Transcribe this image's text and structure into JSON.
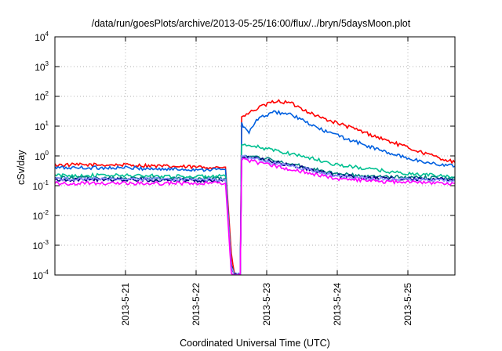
{
  "chart_data": {
    "type": "line",
    "title": "/data/run/goesPlots/archive/2013-05-25/16:00/flux/../bryn/5daysMoon.plot",
    "xlabel": "Coordinated Universal Time (UTC)",
    "ylabel": "cSv/day",
    "yscale": "log",
    "ylim": [
      0.0001,
      10000
    ],
    "xlim": [
      "2013-05-20 00:00",
      "2013-05-25 16:00"
    ],
    "grid": true,
    "legend": "none",
    "y_ticks": [
      {
        "base": "10",
        "exp": "-4"
      },
      {
        "base": "10",
        "exp": "-3"
      },
      {
        "base": "10",
        "exp": "-2"
      },
      {
        "base": "10",
        "exp": "-1"
      },
      {
        "base": "10",
        "exp": "0"
      },
      {
        "base": "10",
        "exp": "1"
      },
      {
        "base": "10",
        "exp": "2"
      },
      {
        "base": "10",
        "exp": "3"
      },
      {
        "base": "10",
        "exp": "4"
      }
    ],
    "x_ticks": [
      "2013-5-21",
      "2013-5-22",
      "2013-5-23",
      "2013-5-24",
      "2013-5-25"
    ],
    "series": [
      {
        "color": "#ff0000",
        "points": [
          [
            "2013-05-20 00:00",
            0.5
          ],
          [
            "2013-05-21 00:00",
            0.5
          ],
          [
            "2013-05-21 12:00",
            0.45
          ],
          [
            "2013-05-22 00:00",
            0.42
          ],
          [
            "2013-05-22 10:00",
            0.42
          ],
          [
            "2013-05-22 12:00",
            0.0005
          ],
          [
            "2013-05-22 13:00",
            0.0001
          ],
          [
            "2013-05-22 15:00",
            0.0001
          ],
          [
            "2013-05-22 15:30",
            20
          ],
          [
            "2013-05-22 21:00",
            40
          ],
          [
            "2013-05-23 03:00",
            70
          ],
          [
            "2013-05-23 08:00",
            60
          ],
          [
            "2013-05-23 18:00",
            20
          ],
          [
            "2013-05-24 06:00",
            8
          ],
          [
            "2013-05-24 18:00",
            3
          ],
          [
            "2013-05-25 06:00",
            1.2
          ],
          [
            "2013-05-25 16:00",
            0.6
          ]
        ]
      },
      {
        "color": "#0060e0",
        "points": [
          [
            "2013-05-20 00:00",
            0.4
          ],
          [
            "2013-05-21 00:00",
            0.4
          ],
          [
            "2013-05-21 12:00",
            0.36
          ],
          [
            "2013-05-22 00:00",
            0.35
          ],
          [
            "2013-05-22 10:00",
            0.35
          ],
          [
            "2013-05-22 12:00",
            0.0002
          ],
          [
            "2013-05-22 13:00",
            0.0001
          ],
          [
            "2013-05-22 15:00",
            0.0001
          ],
          [
            "2013-05-22 15:30",
            12
          ],
          [
            "2013-05-22 18:00",
            6
          ],
          [
            "2013-05-22 21:00",
            18
          ],
          [
            "2013-05-23 03:00",
            30
          ],
          [
            "2013-05-23 08:00",
            25
          ],
          [
            "2013-05-23 18:00",
            8
          ],
          [
            "2013-05-24 06:00",
            3
          ],
          [
            "2013-05-24 18:00",
            1.2
          ],
          [
            "2013-05-25 06:00",
            0.6
          ],
          [
            "2013-05-25 16:00",
            0.45
          ]
        ]
      },
      {
        "color": "#00c090",
        "points": [
          [
            "2013-05-20 00:00",
            0.22
          ],
          [
            "2013-05-21 00:00",
            0.22
          ],
          [
            "2013-05-22 00:00",
            0.2
          ],
          [
            "2013-05-22 10:00",
            0.21
          ],
          [
            "2013-05-22 12:00",
            0.0002
          ],
          [
            "2013-05-22 13:00",
            0.0001
          ],
          [
            "2013-05-22 15:00",
            0.0001
          ],
          [
            "2013-05-22 15:30",
            2.2
          ],
          [
            "2013-05-22 21:00",
            2.0
          ],
          [
            "2013-05-23 12:00",
            1.0
          ],
          [
            "2013-05-24 00:00",
            0.5
          ],
          [
            "2013-05-24 12:00",
            0.35
          ],
          [
            "2013-05-25 00:00",
            0.25
          ],
          [
            "2013-05-25 16:00",
            0.2
          ]
        ]
      },
      {
        "color": "#008080",
        "points": [
          [
            "2013-05-20 00:00",
            0.18
          ],
          [
            "2013-05-21 00:00",
            0.18
          ],
          [
            "2013-05-22 00:00",
            0.17
          ],
          [
            "2013-05-22 10:00",
            0.17
          ],
          [
            "2013-05-22 12:00",
            0.0002
          ],
          [
            "2013-05-22 13:00",
            0.0001
          ],
          [
            "2013-05-22 15:00",
            0.0001
          ],
          [
            "2013-05-22 15:30",
            1.1
          ],
          [
            "2013-05-22 21:00",
            0.9
          ],
          [
            "2013-05-23 12:00",
            0.45
          ],
          [
            "2013-05-24 00:00",
            0.25
          ],
          [
            "2013-05-24 12:00",
            0.2
          ],
          [
            "2013-05-25 16:00",
            0.18
          ]
        ]
      },
      {
        "color": "#000080",
        "points": [
          [
            "2013-05-20 00:00",
            0.16
          ],
          [
            "2013-05-21 00:00",
            0.16
          ],
          [
            "2013-05-22 00:00",
            0.15
          ],
          [
            "2013-05-22 10:00",
            0.15
          ],
          [
            "2013-05-22 12:00",
            0.0002
          ],
          [
            "2013-05-22 13:00",
            0.0001
          ],
          [
            "2013-05-22 15:00",
            0.0001
          ],
          [
            "2013-05-22 15:30",
            1.0
          ],
          [
            "2013-05-22 21:00",
            0.8
          ],
          [
            "2013-05-23 12:00",
            0.4
          ],
          [
            "2013-05-24 00:00",
            0.22
          ],
          [
            "2013-05-24 12:00",
            0.18
          ],
          [
            "2013-05-25 16:00",
            0.16
          ]
        ]
      },
      {
        "color": "#9090ff",
        "points": [
          [
            "2013-05-20 00:00",
            0.17
          ],
          [
            "2013-05-21 00:00",
            0.17
          ],
          [
            "2013-05-22 00:00",
            0.16
          ],
          [
            "2013-05-22 10:00",
            0.16
          ],
          [
            "2013-05-22 12:00",
            0.0002
          ],
          [
            "2013-05-22 13:00",
            0.0001
          ],
          [
            "2013-05-22 15:00",
            0.0001
          ],
          [
            "2013-05-22 15:30",
            0.95
          ],
          [
            "2013-05-22 21:00",
            0.75
          ],
          [
            "2013-05-23 12:00",
            0.38
          ],
          [
            "2013-05-24 00:00",
            0.21
          ],
          [
            "2013-05-24 12:00",
            0.17
          ],
          [
            "2013-05-25 16:00",
            0.15
          ]
        ]
      },
      {
        "color": "#ff00ff",
        "points": [
          [
            "2013-05-20 00:00",
            0.12
          ],
          [
            "2013-05-21 00:00",
            0.12
          ],
          [
            "2013-05-22 00:00",
            0.12
          ],
          [
            "2013-05-22 10:00",
            0.12
          ],
          [
            "2013-05-22 12:00",
            0.0001
          ],
          [
            "2013-05-22 13:00",
            0.0001
          ],
          [
            "2013-05-22 15:00",
            0.0001
          ],
          [
            "2013-05-22 15:30",
            0.75
          ],
          [
            "2013-05-22 21:00",
            0.6
          ],
          [
            "2013-05-23 12:00",
            0.3
          ],
          [
            "2013-05-24 00:00",
            0.17
          ],
          [
            "2013-05-24 12:00",
            0.14
          ],
          [
            "2013-05-25 16:00",
            0.12
          ]
        ]
      }
    ]
  }
}
